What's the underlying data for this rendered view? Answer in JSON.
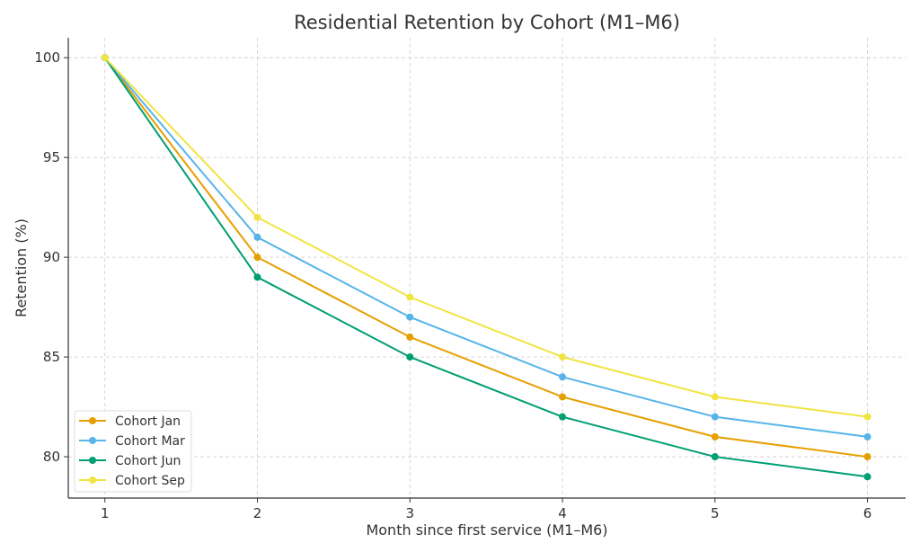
{
  "chart_data": {
    "type": "line",
    "title": "Residential Retention by Cohort (M1–M6)",
    "xlabel": "Month since first service (M1–M6)",
    "ylabel": "Retention (%)",
    "x": [
      1,
      2,
      3,
      4,
      5,
      6
    ],
    "xticks": [
      "1",
      "2",
      "3",
      "4",
      "5",
      "6"
    ],
    "yticks": [
      "80",
      "85",
      "90",
      "95",
      "100"
    ],
    "xlim": [
      0.76,
      6.25
    ],
    "ylim": [
      77.93,
      101
    ],
    "grid": true,
    "legend_position": "bottom-left",
    "series": [
      {
        "name": "Cohort Jan",
        "color": "#E69F00",
        "values": [
          100,
          90,
          86,
          83,
          81,
          80
        ]
      },
      {
        "name": "Cohort Mar",
        "color": "#56B4E9",
        "values": [
          100,
          91,
          87,
          84,
          82,
          81
        ]
      },
      {
        "name": "Cohort Jun",
        "color": "#009E73",
        "values": [
          100,
          89,
          85,
          82,
          80,
          79
        ]
      },
      {
        "name": "Cohort Sep",
        "color": "#F0E442",
        "values": [
          100,
          92,
          88,
          85,
          83,
          82
        ]
      }
    ]
  }
}
